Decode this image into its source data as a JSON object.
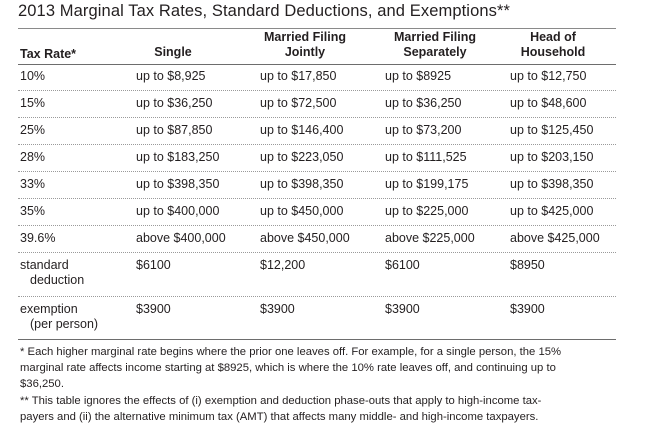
{
  "title": "2013 Marginal Tax Rates, Standard Deductions, and Exemptions**",
  "headers": {
    "rate": "Tax Rate*",
    "single": "Single",
    "mfj_1": "Married Filing",
    "mfj_2": "Jointly",
    "mfs_1": "Married Filing",
    "mfs_2": "Separately",
    "hoh_1": "Head of",
    "hoh_2": "Household"
  },
  "rows": [
    {
      "rate": "10%",
      "single": "up to $8,925",
      "mfj": "up to $17,850",
      "mfs": "up to $8925",
      "hoh": "up to $12,750"
    },
    {
      "rate": "15%",
      "single": "up to $36,250",
      "mfj": "up to $72,500",
      "mfs": "up to $36,250",
      "hoh": "up to $48,600"
    },
    {
      "rate": "25%",
      "single": "up to $87,850",
      "mfj": "up to $146,400",
      "mfs": "up to $73,200",
      "hoh": "up to $125,450"
    },
    {
      "rate": "28%",
      "single": "up to $183,250",
      "mfj": "up to $223,050",
      "mfs": "up to $111,525",
      "hoh": "up to $203,150"
    },
    {
      "rate": "33%",
      "single": "up to $398,350",
      "mfj": "up to $398,350",
      "mfs": "up to $199,175",
      "hoh": "up to $398,350"
    },
    {
      "rate": "35%",
      "single": "up to $400,000",
      "mfj": "up to $450,000",
      "mfs": "up to $225,000",
      "hoh": "up to $425,000"
    },
    {
      "rate": "39.6%",
      "single": "above $400,000",
      "mfj": "above $450,000",
      "mfs": "above $225,000",
      "hoh": "above $425,000"
    }
  ],
  "deduction": {
    "label_1": "standard",
    "label_2": "deduction",
    "single": "$6100",
    "mfj": "$12,200",
    "mfs": "$6100",
    "hoh": "$8950"
  },
  "exemption": {
    "label_1": "exemption",
    "label_2": "(per person)",
    "single": "$3900",
    "mfj": "$3900",
    "mfs": "$3900",
    "hoh": "$3900"
  },
  "notes": {
    "note1_line1": "* Each higher marginal rate begins where the prior one leaves off. For example, for a single person, the 15%",
    "note1_line2": "marginal rate affects income starting at $8925, which is where the 10% rate leaves off, and continuing up to",
    "note1_line3": "$36,250.",
    "note2_line1": "** This table ignores the effects of (i) exemption and deduction phase-outs that apply to high-income tax-",
    "note2_line2": "payers and (ii) the alternative minimum tax (AMT) that affects many middle- and high-income taxpayers."
  }
}
